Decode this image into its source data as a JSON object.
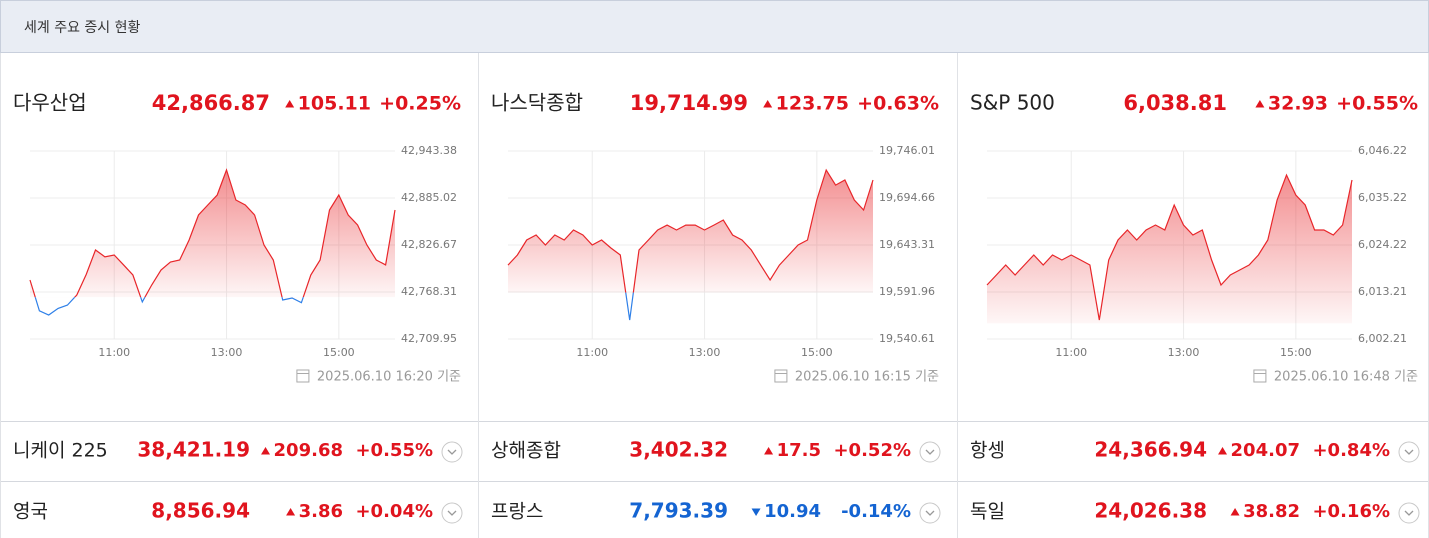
{
  "header": {
    "title": "세계 주요 증시 현황"
  },
  "panels": [
    {
      "name": "다우산업",
      "price": "42,866.87",
      "change": "105.11",
      "change_pct": "+0.25%",
      "direction": "up",
      "timestamp": "2025.06.10 16:20 기준"
    },
    {
      "name": "나스닥종합",
      "price": "19,714.99",
      "change": "123.75",
      "change_pct": "+0.63%",
      "direction": "up",
      "timestamp": "2025.06.10 16:15 기준"
    },
    {
      "name": "S&P 500",
      "price": "6,038.81",
      "change": "32.93",
      "change_pct": "+0.55%",
      "direction": "up",
      "timestamp": "2025.06.10 16:48 기준"
    }
  ],
  "chart_data": [
    {
      "type": "line",
      "up_color": "#e8262a",
      "down_color": "#2f80e8",
      "x": [
        570,
        580,
        590,
        600,
        610,
        620,
        630,
        640,
        650,
        660,
        670,
        680,
        690,
        700,
        710,
        720,
        730,
        740,
        750,
        760,
        770,
        780,
        790,
        800,
        810,
        820,
        830,
        840,
        850,
        860,
        870,
        880,
        890,
        900,
        910,
        920,
        930,
        940,
        950,
        960
      ],
      "values": [
        42783.2,
        42745.0,
        42739.8,
        42748.0,
        42752.0,
        42764.6,
        42790.0,
        42820.5,
        42812.0,
        42814.3,
        42801.9,
        42789.4,
        42756.0,
        42777.0,
        42795.6,
        42805.6,
        42808.0,
        42832.9,
        42863.9,
        42876.3,
        42888.8,
        42919.8,
        42882.5,
        42876.3,
        42863.9,
        42826.7,
        42808.0,
        42758.4,
        42760.9,
        42755.0,
        42789.4,
        42808.0,
        42870.1,
        42888.8,
        42863.9,
        42851.5,
        42826.7,
        42808.0,
        42801.9,
        42870.1
      ],
      "xlim": [
        570,
        960
      ],
      "ylim": [
        42709.95,
        42943.38
      ],
      "xticks": [
        {
          "value": 660,
          "label": "11:00"
        },
        {
          "value": 780,
          "label": "13:00"
        },
        {
          "value": 900,
          "label": "15:00"
        }
      ],
      "yticks": [
        {
          "value": 42709.95,
          "label": "42,709.95"
        },
        {
          "value": 42768.31,
          "label": "42,768.31"
        },
        {
          "value": 42826.67,
          "label": "42,826.67"
        },
        {
          "value": 42885.02,
          "label": "42,885.02"
        },
        {
          "value": 42943.38,
          "label": "42,943.38"
        }
      ]
    },
    {
      "type": "line",
      "up_color": "#e8262a",
      "down_color": "#2f80e8",
      "x": [
        570,
        580,
        590,
        600,
        610,
        620,
        630,
        640,
        650,
        660,
        670,
        680,
        690,
        700,
        710,
        720,
        730,
        740,
        750,
        760,
        770,
        780,
        790,
        800,
        810,
        820,
        830,
        840,
        850,
        860,
        870,
        880,
        890,
        900,
        910,
        920,
        930,
        940,
        950,
        960
      ],
      "values": [
        19621.4,
        19632.4,
        19648.8,
        19654.2,
        19643.3,
        19654.2,
        19648.8,
        19659.7,
        19654.2,
        19643.3,
        19648.8,
        19640.0,
        19632.4,
        19561.4,
        19637.8,
        19648.8,
        19659.7,
        19665.1,
        19659.7,
        19665.1,
        19665.1,
        19659.7,
        19665.1,
        19670.6,
        19654.2,
        19648.8,
        19637.8,
        19621.4,
        19605.1,
        19621.4,
        19632.4,
        19643.3,
        19648.8,
        19692.5,
        19725.2,
        19708.8,
        19714.3,
        19692.5,
        19681.5,
        19714.3
      ],
      "xlim": [
        570,
        960
      ],
      "ylim": [
        19540.61,
        19746.01
      ],
      "xticks": [
        {
          "value": 660,
          "label": "11:00"
        },
        {
          "value": 780,
          "label": "13:00"
        },
        {
          "value": 900,
          "label": "15:00"
        }
      ],
      "yticks": [
        {
          "value": 19540.61,
          "label": "19,540.61"
        },
        {
          "value": 19591.96,
          "label": "19,591.96"
        },
        {
          "value": 19643.31,
          "label": "19,643.31"
        },
        {
          "value": 19694.66,
          "label": "19,694.66"
        },
        {
          "value": 19746.01,
          "label": "19,746.01"
        }
      ]
    },
    {
      "type": "line",
      "up_color": "#e8262a",
      "down_color": "#2f80e8",
      "x": [
        570,
        580,
        590,
        600,
        610,
        620,
        630,
        640,
        650,
        660,
        670,
        680,
        690,
        700,
        710,
        720,
        730,
        740,
        750,
        760,
        770,
        780,
        790,
        800,
        810,
        820,
        830,
        840,
        850,
        860,
        870,
        880,
        890,
        900,
        910,
        920,
        930,
        940,
        950,
        960
      ],
      "values": [
        6014.85,
        6017.19,
        6019.53,
        6017.19,
        6019.53,
        6021.87,
        6019.53,
        6021.87,
        6020.7,
        6021.87,
        6020.7,
        6019.53,
        6006.66,
        6020.7,
        6025.39,
        6027.73,
        6025.39,
        6027.73,
        6028.9,
        6027.73,
        6033.58,
        6028.9,
        6026.56,
        6027.73,
        6020.7,
        6014.85,
        6017.19,
        6018.36,
        6019.53,
        6021.87,
        6025.39,
        6034.75,
        6040.6,
        6035.92,
        6033.58,
        6027.73,
        6027.73,
        6026.56,
        6028.9,
        6039.43
      ],
      "xlim": [
        570,
        960
      ],
      "ylim": [
        6002.21,
        6046.22
      ],
      "xticks": [
        {
          "value": 660,
          "label": "11:00"
        },
        {
          "value": 780,
          "label": "13:00"
        },
        {
          "value": 900,
          "label": "15:00"
        }
      ],
      "yticks": [
        {
          "value": 6002.21,
          "label": "6,002.21"
        },
        {
          "value": 6013.21,
          "label": "6,013.21"
        },
        {
          "value": 6024.22,
          "label": "6,024.22"
        },
        {
          "value": 6035.22,
          "label": "6,035.22"
        },
        {
          "value": 6046.22,
          "label": "6,046.22"
        }
      ]
    }
  ],
  "rows": [
    [
      {
        "name": "니케이 225",
        "price": "38,421.19",
        "change": "209.68",
        "change_pct": "+0.55%",
        "direction": "up"
      },
      {
        "name": "상해종합",
        "price": "3,402.32",
        "change": "17.5",
        "change_pct": "+0.52%",
        "direction": "up"
      },
      {
        "name": "항셍",
        "price": "24,366.94",
        "change": "204.07",
        "change_pct": "+0.84%",
        "direction": "up"
      }
    ],
    [
      {
        "name": "영국",
        "price": "8,856.94",
        "change": "3.86",
        "change_pct": "+0.04%",
        "direction": "up"
      },
      {
        "name": "프랑스",
        "price": "7,793.39",
        "change": "10.94",
        "change_pct": "-0.14%",
        "direction": "down"
      },
      {
        "name": "독일",
        "price": "24,026.38",
        "change": "38.82",
        "change_pct": "+0.16%",
        "direction": "up"
      }
    ]
  ]
}
